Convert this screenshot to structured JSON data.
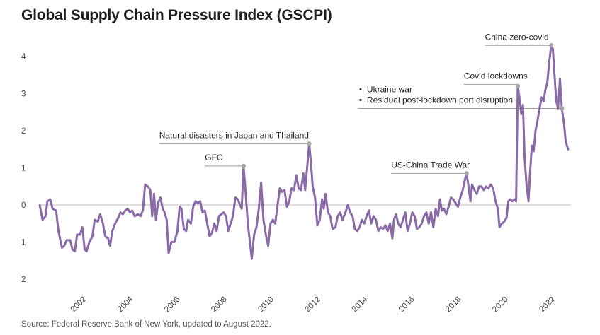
{
  "chart_data": {
    "type": "line",
    "title": "Global Supply Chain Pressure Index (GSCPI)",
    "source": "Source: Federal Reserve Bank of New York, updated to August 2022.",
    "xlim": [
      2000.0,
      2022.67
    ],
    "ylim": [
      -2,
      4.5
    ],
    "y_ticks": [
      {
        "value": 4,
        "label": "4"
      },
      {
        "value": 3,
        "label": "3"
      },
      {
        "value": 2,
        "label": "2"
      },
      {
        "value": 1,
        "label": "1"
      },
      {
        "value": 0,
        "label": "0"
      },
      {
        "value": -1,
        "label": "1"
      },
      {
        "value": -2,
        "label": "2"
      }
    ],
    "x_ticks": [
      {
        "value": 2002,
        "label": "2002"
      },
      {
        "value": 2004,
        "label": "2004"
      },
      {
        "value": 2006,
        "label": "2006"
      },
      {
        "value": 2008,
        "label": "2008"
      },
      {
        "value": 2010,
        "label": "2010"
      },
      {
        "value": 2012,
        "label": "2012"
      },
      {
        "value": 2014,
        "label": "2014"
      },
      {
        "value": 2016,
        "label": "2016"
      },
      {
        "value": 2018,
        "label": "2018"
      },
      {
        "value": 2020,
        "label": "2020"
      },
      {
        "value": 2022,
        "label": "2022"
      }
    ],
    "zero_line": true,
    "series": [
      {
        "color": "#8a6aa8",
        "points": [
          [
            2000.0,
            0.0
          ],
          [
            2000.12,
            -0.4
          ],
          [
            2000.25,
            -0.3
          ],
          [
            2000.33,
            0.1
          ],
          [
            2000.45,
            0.15
          ],
          [
            2000.55,
            -0.1
          ],
          [
            2000.7,
            -0.15
          ],
          [
            2000.8,
            -0.7
          ],
          [
            2000.95,
            -1.15
          ],
          [
            2001.05,
            -1.1
          ],
          [
            2001.15,
            -0.95
          ],
          [
            2001.3,
            -0.95
          ],
          [
            2001.4,
            -1.2
          ],
          [
            2001.5,
            -1.25
          ],
          [
            2001.6,
            -0.8
          ],
          [
            2001.72,
            -0.8
          ],
          [
            2001.82,
            -0.6
          ],
          [
            2001.92,
            -1.2
          ],
          [
            2002.0,
            -1.25
          ],
          [
            2002.12,
            -1.0
          ],
          [
            2002.25,
            -0.85
          ],
          [
            2002.35,
            -0.4
          ],
          [
            2002.48,
            -0.45
          ],
          [
            2002.58,
            -0.25
          ],
          [
            2002.7,
            -0.5
          ],
          [
            2002.8,
            -0.85
          ],
          [
            2002.92,
            -0.9
          ],
          [
            2003.0,
            -1.1
          ],
          [
            2003.1,
            -0.7
          ],
          [
            2003.22,
            -0.5
          ],
          [
            2003.35,
            -0.35
          ],
          [
            2003.45,
            -0.2
          ],
          [
            2003.55,
            -0.25
          ],
          [
            2003.65,
            -0.15
          ],
          [
            2003.75,
            -0.1
          ],
          [
            2003.85,
            -0.2
          ],
          [
            2003.95,
            -0.15
          ],
          [
            2004.05,
            -0.3
          ],
          [
            2004.2,
            -0.25
          ],
          [
            2004.3,
            -0.3
          ],
          [
            2004.4,
            -0.15
          ],
          [
            2004.5,
            0.55
          ],
          [
            2004.62,
            0.5
          ],
          [
            2004.72,
            0.4
          ],
          [
            2004.8,
            -0.3
          ],
          [
            2004.88,
            0.3
          ],
          [
            2004.96,
            -0.4
          ],
          [
            2005.05,
            0.05
          ],
          [
            2005.15,
            0.2
          ],
          [
            2005.25,
            -0.1
          ],
          [
            2005.33,
            -0.2
          ],
          [
            2005.42,
            -0.4
          ],
          [
            2005.5,
            -1.3
          ],
          [
            2005.62,
            -1.0
          ],
          [
            2005.75,
            -1.0
          ],
          [
            2005.88,
            -0.7
          ],
          [
            2005.97,
            -0.05
          ],
          [
            2006.05,
            -0.1
          ],
          [
            2006.15,
            -0.65
          ],
          [
            2006.25,
            -0.7
          ],
          [
            2006.33,
            -0.4
          ],
          [
            2006.45,
            -0.5
          ],
          [
            2006.55,
            -0.05
          ],
          [
            2006.65,
            0.1
          ],
          [
            2006.75,
            0.05
          ],
          [
            2006.85,
            0.1
          ],
          [
            2006.95,
            -0.2
          ],
          [
            2007.05,
            -0.15
          ],
          [
            2007.15,
            -0.5
          ],
          [
            2007.25,
            -0.85
          ],
          [
            2007.35,
            -0.75
          ],
          [
            2007.45,
            -0.5
          ],
          [
            2007.55,
            -0.7
          ],
          [
            2007.65,
            -0.3
          ],
          [
            2007.75,
            -0.25
          ],
          [
            2007.85,
            -0.2
          ],
          [
            2007.95,
            -0.3
          ],
          [
            2008.05,
            -0.7
          ],
          [
            2008.15,
            -0.5
          ],
          [
            2008.25,
            -0.3
          ],
          [
            2008.35,
            0.2
          ],
          [
            2008.45,
            0.15
          ],
          [
            2008.55,
            0.0
          ],
          [
            2008.62,
            -0.1
          ],
          [
            2008.7,
            1.05
          ],
          [
            2008.78,
            0.4
          ],
          [
            2008.88,
            -0.5
          ],
          [
            2008.97,
            -1.0
          ],
          [
            2009.05,
            -1.45
          ],
          [
            2009.15,
            -0.8
          ],
          [
            2009.25,
            -0.6
          ],
          [
            2009.35,
            -0.1
          ],
          [
            2009.45,
            0.6
          ],
          [
            2009.55,
            -0.4
          ],
          [
            2009.65,
            -0.8
          ],
          [
            2009.75,
            -1.1
          ],
          [
            2009.85,
            -0.5
          ],
          [
            2009.95,
            -0.4
          ],
          [
            2010.05,
            -0.5
          ],
          [
            2010.15,
            0.0
          ],
          [
            2010.25,
            0.45
          ],
          [
            2010.35,
            0.35
          ],
          [
            2010.45,
            0.4
          ],
          [
            2010.55,
            -0.05
          ],
          [
            2010.65,
            0.1
          ],
          [
            2010.75,
            0.45
          ],
          [
            2010.85,
            0.4
          ],
          [
            2010.95,
            0.8
          ],
          [
            2011.05,
            0.45
          ],
          [
            2011.15,
            0.4
          ],
          [
            2011.25,
            0.85
          ],
          [
            2011.33,
            0.4
          ],
          [
            2011.5,
            1.65
          ],
          [
            2011.58,
            1.1
          ],
          [
            2011.65,
            0.5
          ],
          [
            2011.75,
            0.2
          ],
          [
            2011.85,
            -0.55
          ],
          [
            2011.95,
            -0.4
          ],
          [
            2012.05,
            0.15
          ],
          [
            2012.12,
            -0.1
          ],
          [
            2012.2,
            0.3
          ],
          [
            2012.3,
            -0.2
          ],
          [
            2012.4,
            -0.3
          ],
          [
            2012.5,
            -0.65
          ],
          [
            2012.62,
            -0.6
          ],
          [
            2012.72,
            -0.3
          ],
          [
            2012.82,
            -0.2
          ],
          [
            2012.92,
            -0.4
          ],
          [
            2013.05,
            -0.2
          ],
          [
            2013.15,
            0.0
          ],
          [
            2013.25,
            -0.2
          ],
          [
            2013.35,
            -0.3
          ],
          [
            2013.45,
            -0.65
          ],
          [
            2013.55,
            -0.7
          ],
          [
            2013.65,
            -0.6
          ],
          [
            2013.75,
            -0.4
          ],
          [
            2013.85,
            -0.5
          ],
          [
            2013.95,
            -0.3
          ],
          [
            2014.05,
            -0.15
          ],
          [
            2014.15,
            -0.5
          ],
          [
            2014.25,
            -0.3
          ],
          [
            2014.35,
            -0.4
          ],
          [
            2014.45,
            -0.7
          ],
          [
            2014.55,
            -0.6
          ],
          [
            2014.65,
            -0.65
          ],
          [
            2014.75,
            -0.55
          ],
          [
            2014.85,
            -0.7
          ],
          [
            2014.95,
            -0.5
          ],
          [
            2015.05,
            -0.9
          ],
          [
            2015.12,
            -0.4
          ],
          [
            2015.2,
            -0.25
          ],
          [
            2015.3,
            -0.5
          ],
          [
            2015.4,
            -0.6
          ],
          [
            2015.5,
            -0.4
          ],
          [
            2015.6,
            -0.2
          ],
          [
            2015.7,
            -0.7
          ],
          [
            2015.8,
            -0.5
          ],
          [
            2015.9,
            -0.2
          ],
          [
            2016.0,
            -0.3
          ],
          [
            2016.1,
            -0.65
          ],
          [
            2016.2,
            -0.6
          ],
          [
            2016.3,
            -0.5
          ],
          [
            2016.4,
            -0.3
          ],
          [
            2016.5,
            -0.2
          ],
          [
            2016.6,
            -0.5
          ],
          [
            2016.7,
            -0.2
          ],
          [
            2016.8,
            -0.6
          ],
          [
            2016.9,
            -0.1
          ],
          [
            2017.0,
            -0.3
          ],
          [
            2017.08,
            0.15
          ],
          [
            2017.16,
            -0.15
          ],
          [
            2017.25,
            -0.1
          ],
          [
            2017.35,
            -0.25
          ],
          [
            2017.45,
            -0.05
          ],
          [
            2017.55,
            0.2
          ],
          [
            2017.65,
            0.15
          ],
          [
            2017.75,
            0.05
          ],
          [
            2017.85,
            -0.05
          ],
          [
            2017.95,
            0.2
          ],
          [
            2018.05,
            0.4
          ],
          [
            2018.15,
            0.7
          ],
          [
            2018.22,
            0.85
          ],
          [
            2018.3,
            0.5
          ],
          [
            2018.38,
            0.1
          ],
          [
            2018.45,
            0.55
          ],
          [
            2018.55,
            0.4
          ],
          [
            2018.65,
            0.3
          ],
          [
            2018.75,
            0.5
          ],
          [
            2018.85,
            0.5
          ],
          [
            2018.95,
            0.4
          ],
          [
            2019.05,
            0.5
          ],
          [
            2019.15,
            0.45
          ],
          [
            2019.25,
            0.55
          ],
          [
            2019.35,
            0.45
          ],
          [
            2019.45,
            0.1
          ],
          [
            2019.55,
            -0.1
          ],
          [
            2019.62,
            -0.6
          ],
          [
            2019.72,
            -0.5
          ],
          [
            2019.82,
            -0.45
          ],
          [
            2019.92,
            -0.35
          ],
          [
            2020.0,
            0.1
          ],
          [
            2020.08,
            0.15
          ],
          [
            2020.16,
            0.1
          ],
          [
            2020.25,
            0.15
          ],
          [
            2020.33,
            0.1
          ],
          [
            2020.4,
            3.2
          ],
          [
            2020.47,
            2.9
          ],
          [
            2020.55,
            2.45
          ],
          [
            2020.62,
            2.7
          ],
          [
            2020.7,
            1.2
          ],
          [
            2020.78,
            0.5
          ],
          [
            2020.86,
            0.1
          ],
          [
            2020.93,
            0.9
          ],
          [
            2021.0,
            1.6
          ],
          [
            2021.08,
            1.45
          ],
          [
            2021.16,
            2.0
          ],
          [
            2021.25,
            2.3
          ],
          [
            2021.33,
            2.6
          ],
          [
            2021.42,
            2.9
          ],
          [
            2021.5,
            2.8
          ],
          [
            2021.58,
            3.1
          ],
          [
            2021.66,
            3.3
          ],
          [
            2021.75,
            3.9
          ],
          [
            2021.83,
            4.3
          ],
          [
            2021.9,
            4.2
          ],
          [
            2021.97,
            3.5
          ],
          [
            2022.04,
            2.8
          ],
          [
            2022.12,
            2.6
          ],
          [
            2022.2,
            3.4
          ],
          [
            2022.28,
            2.6
          ],
          [
            2022.37,
            2.2
          ],
          [
            2022.45,
            1.7
          ],
          [
            2022.55,
            1.5
          ]
        ]
      }
    ],
    "annotations": [
      {
        "marker": [
          2008.7,
          1.05
        ],
        "line_y": 1.05,
        "line_x1": 2007.05,
        "lines": [
          "GFC"
        ]
      },
      {
        "marker": [
          2011.5,
          1.65
        ],
        "line_y": 1.65,
        "line_x1": 2005.1,
        "lines": [
          "Natural disasters in Japan and Thailand"
        ]
      },
      {
        "marker": [
          2018.22,
          0.85
        ],
        "line_y": 0.85,
        "line_x1": 2015.0,
        "lines": [
          "US-China Trade War"
        ]
      },
      {
        "marker": [
          2020.4,
          3.2
        ],
        "line_y": 3.25,
        "line_x1": 2018.1,
        "lines": [
          "Covid lockdowns"
        ]
      },
      {
        "marker": [
          2022.28,
          2.6
        ],
        "line_y": 2.6,
        "line_x1": 2013.6,
        "bullets": true,
        "lines": [
          "Ukraine war",
          "Residual post-lockdown port disruption"
        ]
      },
      {
        "marker": [
          2021.83,
          4.3
        ],
        "line_y": 4.3,
        "line_x1": 2019.0,
        "lines": [
          "China zero-covid"
        ]
      }
    ]
  }
}
